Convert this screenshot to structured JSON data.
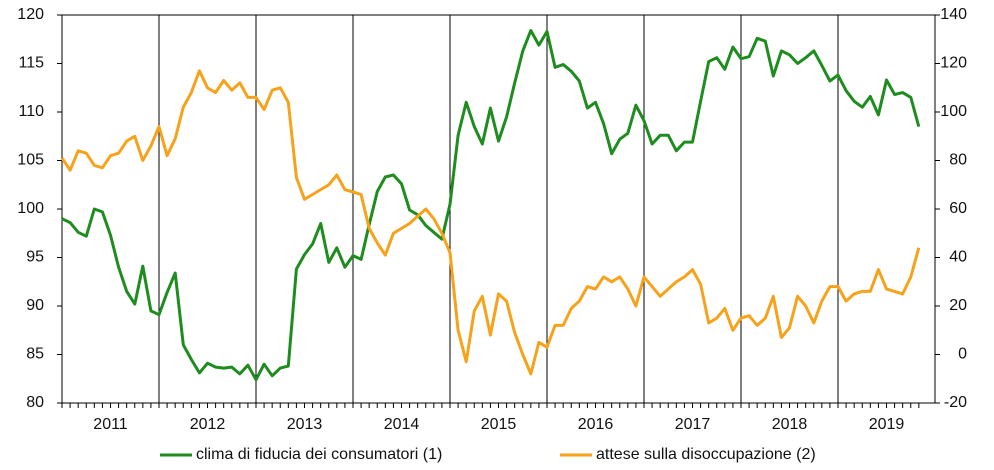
{
  "chart_data": {
    "type": "line",
    "categories": [
      null,
      null,
      null,
      null,
      null,
      null,
      "2011",
      null,
      null,
      null,
      null,
      null,
      null,
      null,
      null,
      null,
      null,
      null,
      "2012",
      null,
      null,
      null,
      null,
      null,
      null,
      null,
      null,
      null,
      null,
      null,
      "2013",
      null,
      null,
      null,
      null,
      null,
      null,
      null,
      null,
      null,
      null,
      null,
      "2014",
      null,
      null,
      null,
      null,
      null,
      null,
      null,
      null,
      null,
      null,
      null,
      "2015",
      null,
      null,
      null,
      null,
      null,
      null,
      null,
      null,
      null,
      null,
      null,
      "2016",
      null,
      null,
      null,
      null,
      null,
      null,
      null,
      null,
      null,
      null,
      null,
      "2017",
      null,
      null,
      null,
      null,
      null,
      null,
      null,
      null,
      null,
      null,
      null,
      "2018",
      null,
      null,
      null,
      null,
      null,
      null,
      null,
      null,
      null,
      null,
      null,
      "2019",
      null,
      null,
      null,
      null
    ],
    "series": [
      {
        "name": "clima di fiducia dei consumatori (1)",
        "color": "#1e8c1e",
        "values": [
          99,
          98.6,
          97.6,
          97.2,
          100.0,
          99.7,
          97.3,
          94,
          91.5,
          90.2,
          94.1,
          89.5,
          89.1,
          91.4,
          93.4,
          86,
          84.5,
          83.1,
          84.1,
          83.7,
          83.6,
          83.7,
          83,
          83.9,
          82.4,
          84,
          82.8,
          83.6,
          83.8,
          93.8,
          95.3,
          96.4,
          98.5,
          94.5,
          96,
          94,
          95.2,
          94.8,
          98.4,
          101.8,
          103.3,
          103.5,
          102.6,
          99.9,
          99.4,
          98.3,
          97.6,
          96.9,
          100.5,
          107.6,
          111,
          108.5,
          106.7,
          110.4,
          107,
          109.5,
          113,
          116.3,
          118.4,
          116.9,
          118.3,
          114.6,
          114.9,
          114.2,
          113.2,
          110.4,
          111,
          108.8,
          105.7,
          107.2,
          107.8,
          110.7,
          109.1,
          106.7,
          107.6,
          107.6,
          106,
          106.9,
          106.9,
          111.1,
          115.2,
          115.6,
          114.4,
          116.7,
          115.5,
          115.7,
          117.6,
          117.3,
          113.7,
          116.3,
          115.9,
          115,
          115.6,
          116.3,
          114.8,
          113.2,
          113.8,
          112.2,
          111.1,
          110.5,
          111.6,
          109.7,
          113.3,
          111.8,
          112,
          111.5,
          108.5
        ]
      },
      {
        "name": "attese sulla disoccupazione (2)",
        "color": "#f7a21b",
        "axis": "y2",
        "values": [
          81,
          76,
          84,
          83,
          78,
          77,
          82,
          83,
          88,
          90,
          80,
          86,
          94,
          82,
          89,
          102,
          108,
          117,
          110,
          108,
          113,
          109,
          112,
          106,
          106,
          101,
          109,
          110,
          104,
          73,
          64,
          66,
          68,
          70,
          74,
          68,
          67,
          66,
          52,
          46,
          41,
          50,
          52,
          54,
          57,
          60,
          56,
          50,
          42,
          10,
          -3,
          18,
          24,
          8,
          25,
          22,
          9,
          0,
          -8,
          5,
          3,
          12,
          12,
          19,
          22,
          28,
          27,
          32,
          30,
          32,
          27,
          20,
          32,
          28,
          24,
          27,
          30,
          32,
          35,
          29,
          13,
          15,
          19,
          10,
          15,
          16,
          12,
          15,
          24,
          7,
          11,
          24,
          20,
          13,
          22,
          28,
          28,
          22,
          25,
          26,
          26,
          35,
          27,
          26,
          25,
          32,
          44
        ]
      }
    ],
    "ylim": [
      80,
      120
    ],
    "yticks": [
      80,
      85,
      90,
      95,
      100,
      105,
      110,
      115,
      120
    ],
    "y2lim": [
      -20,
      140
    ],
    "y2ticks": [
      -20,
      0,
      20,
      40,
      60,
      80,
      100,
      120,
      140
    ],
    "grid": false
  }
}
